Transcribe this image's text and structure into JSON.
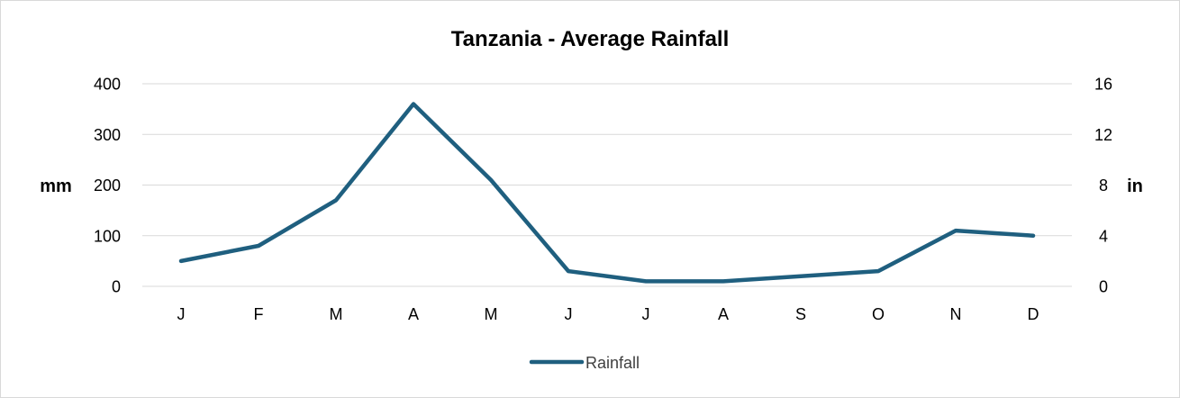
{
  "chart_data": {
    "type": "line",
    "title": "Tanzania - Average Rainfall",
    "categories": [
      "J",
      "F",
      "M",
      "A",
      "M",
      "J",
      "J",
      "A",
      "S",
      "O",
      "N",
      "D"
    ],
    "series": [
      {
        "name": "Rainfall",
        "color": "#1f5f7f",
        "values": [
          50,
          80,
          170,
          360,
          210,
          30,
          10,
          10,
          20,
          30,
          110,
          100
        ]
      }
    ],
    "y_left": {
      "label": "mm",
      "ylim": [
        0,
        400
      ],
      "ticks": [
        "0",
        "100",
        "200",
        "300",
        "400"
      ]
    },
    "y_right": {
      "label": "in",
      "ylim": [
        0,
        16
      ],
      "ticks": [
        "0",
        "4",
        "8",
        "12",
        "16"
      ]
    },
    "grid": true,
    "legend": "bottom",
    "colors": {
      "grid": "#d9d9d9",
      "frame": "#d9d9d9"
    }
  }
}
